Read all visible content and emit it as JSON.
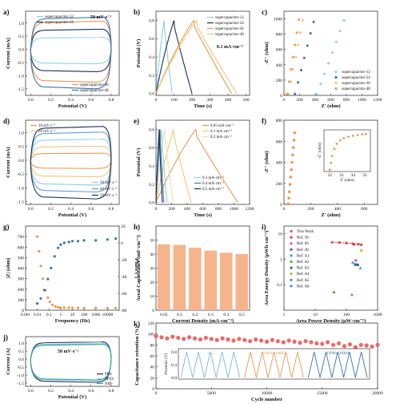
{
  "chart_data": [
    {
      "id": "a",
      "panel_label": "a)",
      "type": "line",
      "xlabel": "Potential (V)",
      "ylabel": "Current (mA)",
      "xlim": [
        -0.05,
        0.88
      ],
      "ylim": [
        -1.75,
        1.45
      ],
      "xticks": [
        "0.0",
        "0.2",
        "0.4",
        "0.6",
        "0.8"
      ],
      "yticks": [
        "-1.5",
        "-1.0",
        "-0.5",
        "0.0",
        "0.5",
        "1.0"
      ],
      "annotation": "50 mV·s⁻¹",
      "series": [
        {
          "name": "supercapacitor-12",
          "color": "#8ecfe0",
          "upper": 0.45,
          "lower": -0.55
        },
        {
          "name": "supercapacitor-24",
          "color": "#1d2f57",
          "upper": 0.75,
          "lower": -0.85
        },
        {
          "name": "supercapacitor-36",
          "color": "#e89a55",
          "upper": 1.05,
          "lower": -1.25
        },
        {
          "name": "supercapacitor-48",
          "color": "#3c74a8",
          "upper": 1.2,
          "lower": -1.5
        }
      ]
    },
    {
      "id": "b",
      "panel_label": "b)",
      "type": "line",
      "xlabel": "Time (s)",
      "ylabel": "Potential (V)",
      "xlim": [
        0,
        520
      ],
      "ylim": [
        -0.02,
        0.9
      ],
      "xticks": [
        "0",
        "100",
        "200",
        "300",
        "400",
        "500"
      ],
      "yticks": [
        "0.0",
        "0.2",
        "0.4",
        "0.6",
        "0.8"
      ],
      "annotation": "0.1 mA·cm⁻²",
      "series": [
        {
          "name": "supercapacitor-12",
          "color": "#8ecfe0",
          "peak_t": 45,
          "end_t": 90
        },
        {
          "name": "supercapacitor-24",
          "color": "#1d2f57",
          "peak_t": 100,
          "end_t": 200
        },
        {
          "name": "supercapacitor-36",
          "color": "#e89a55",
          "peak_t": 210,
          "end_t": 420
        },
        {
          "name": "supercapacitor-48",
          "color": "#f2c879",
          "peak_t": 225,
          "end_t": 450
        }
      ]
    },
    {
      "id": "c",
      "panel_label": "c)",
      "type": "scatter",
      "xlabel": "Z' (ohm)",
      "ylabel": "-Z'' (ohm)",
      "xlim": [
        0,
        1200
      ],
      "ylim": [
        0,
        1100
      ],
      "xticks": [
        "0",
        "200",
        "400",
        "600",
        "800",
        "1000",
        "1200"
      ],
      "yticks": [
        "0",
        "200",
        "400",
        "600",
        "800",
        "1000"
      ],
      "series": [
        {
          "name": "supercapacitor-12",
          "color": "#8ecfe0",
          "x": [
            420,
            470,
            520,
            570,
            620,
            670,
            720,
            770
          ],
          "y": [
            20,
            150,
            280,
            420,
            560,
            700,
            840,
            980
          ]
        },
        {
          "name": "supercapacitor-24",
          "color": "#3c74a8",
          "x": [
            140,
            180,
            220,
            260,
            300,
            340,
            380
          ],
          "y": [
            20,
            170,
            330,
            490,
            650,
            810,
            960
          ]
        },
        {
          "name": "supercapacitor-36",
          "color": "#f2c879",
          "x": [
            60,
            90,
            120,
            150,
            180,
            210,
            240
          ],
          "y": [
            20,
            180,
            340,
            500,
            660,
            820,
            980
          ]
        },
        {
          "name": "supercapacitor-48",
          "color": "#e89a55",
          "x": [
            40,
            65,
            90,
            115,
            140,
            165,
            190
          ],
          "y": [
            20,
            180,
            340,
            500,
            660,
            820,
            990
          ]
        }
      ]
    },
    {
      "id": "d",
      "panel_label": "d)",
      "type": "line",
      "xlabel": "Potential (V)",
      "ylabel": "Current (mA)",
      "xlim": [
        -0.05,
        0.88
      ],
      "ylim": [
        -1.6,
        1.45
      ],
      "xticks": [
        "0.0",
        "0.2",
        "0.4",
        "0.6",
        "0.8"
      ],
      "yticks": [
        "-1.5",
        "-1.0",
        "-0.5",
        "0.0",
        "0.5",
        "1.0"
      ],
      "series": [
        {
          "name": "10 mV·s⁻¹",
          "color": "#e89a55",
          "upper": 0.25,
          "lower": -0.3
        },
        {
          "name": "20 mV·s⁻¹",
          "color": "#f2c879",
          "upper": 0.5,
          "lower": -0.6
        },
        {
          "name": "30 mV·s⁻¹",
          "color": "#8ecfe0",
          "upper": 0.75,
          "lower": -0.9
        },
        {
          "name": "40 mV·s⁻¹",
          "color": "#5f9ec9",
          "upper": 1.0,
          "lower": -1.15
        },
        {
          "name": "50 mV·s⁻¹",
          "color": "#1d2f57",
          "upper": 1.2,
          "lower": -1.4
        }
      ]
    },
    {
      "id": "e",
      "panel_label": "e)",
      "type": "line",
      "xlabel": "Time (s)",
      "ylabel": "Potential (V)",
      "xlim": [
        0,
        1200
      ],
      "ylim": [
        -0.02,
        0.9
      ],
      "xticks": [
        "0",
        "200",
        "400",
        "600",
        "800",
        "1000",
        "1200"
      ],
      "yticks": [
        "0.0",
        "0.2",
        "0.4",
        "0.6",
        "0.8"
      ],
      "series": [
        {
          "name": "0.05 mA·cm⁻²",
          "color": "#e89a55",
          "peak_t": 510,
          "end_t": 1050
        },
        {
          "name": "0.1 mA·cm⁻²",
          "color": "#f2c879",
          "peak_t": 225,
          "end_t": 450
        },
        {
          "name": "0.2 mA·cm⁻²",
          "color": "#f5dca3",
          "peak_t": 110,
          "end_t": 220
        },
        {
          "name": "0.3 mA·cm⁻²",
          "color": "#8ecfe0",
          "peak_t": 70,
          "end_t": 140
        },
        {
          "name": "0.4 mA·cm⁻²",
          "color": "#3c74a8",
          "peak_t": 50,
          "end_t": 100
        },
        {
          "name": "0.5 mA·cm⁻²",
          "color": "#1d2f57",
          "peak_t": 40,
          "end_t": 80
        }
      ]
    },
    {
      "id": "f",
      "panel_label": "f)",
      "type": "scatter",
      "xlabel": "Z' (ohm)",
      "ylabel": "-Z'' (ohm)",
      "xlim": [
        0,
        700
      ],
      "ylim": [
        0,
        800
      ],
      "xticks": [
        "0",
        "200",
        "400",
        "600"
      ],
      "yticks": [
        "0",
        "200",
        "400",
        "600",
        "800"
      ],
      "series": [
        {
          "name": "",
          "color": "#e89a55",
          "x": [
            32,
            36,
            40,
            45,
            50,
            55,
            60,
            65,
            70,
            75,
            80
          ],
          "y": [
            5,
            60,
            120,
            190,
            260,
            330,
            400,
            470,
            540,
            610,
            680
          ]
        }
      ],
      "inset": {
        "xlabel": "Z' (ohm)",
        "ylabel": "-Z'' (ohm)",
        "xlim": [
          31.5,
          35.5
        ],
        "ylim": [
          0,
          12
        ],
        "xticks": [
          "32",
          "33",
          "34",
          "35"
        ],
        "x": [
          32.0,
          32.1,
          32.2,
          32.4,
          32.6,
          32.9,
          33.2,
          33.6,
          34.0,
          34.4,
          34.8,
          35.1
        ],
        "y": [
          0.5,
          2.5,
          4.5,
          6.5,
          8.0,
          9.0,
          9.6,
          10.0,
          10.3,
          10.5,
          10.7,
          10.8
        ]
      }
    },
    {
      "id": "g",
      "panel_label": "g)",
      "type": "scatter",
      "xlabel": "Frequency (Hz)",
      "ylabel": "|Z| (ohm)",
      "y2label": "Phase (°)",
      "xscale": "log",
      "xlim": [
        0.001,
        100000
      ],
      "ylim": [
        0,
        800
      ],
      "y2lim": [
        -80,
        20
      ],
      "xticks": [
        "0.001",
        "0.01",
        "0.1",
        "1",
        "10",
        "100",
        "1000",
        "10000"
      ],
      "yticks": [
        "0",
        "100",
        "200",
        "300",
        "400",
        "500",
        "600",
        "700"
      ],
      "y2ticks": [
        "-80",
        "-60",
        "-40",
        "-20",
        "0",
        "20"
      ],
      "series": [
        {
          "name": "|Z|",
          "color": "#e89a55",
          "axis": "left",
          "x": [
            0.01,
            0.014,
            0.02,
            0.03,
            0.05,
            0.08,
            0.12,
            0.2,
            0.35,
            0.6,
            1,
            2,
            5,
            10,
            30,
            100,
            1000,
            10000,
            50000
          ],
          "y": [
            700,
            560,
            420,
            300,
            190,
            120,
            80,
            50,
            35,
            28,
            25,
            24,
            23,
            22,
            22,
            21,
            21,
            20,
            20
          ]
        },
        {
          "name": "Phase",
          "color": "#3c74a8",
          "axis": "right",
          "x": [
            0.01,
            0.02,
            0.04,
            0.08,
            0.15,
            0.3,
            0.6,
            1,
            2,
            5,
            10,
            30,
            100,
            1000,
            10000,
            50000
          ],
          "y": [
            -72,
            -66,
            -56,
            -43,
            -30,
            -16,
            -6,
            -2,
            0,
            1,
            2,
            2,
            3,
            3,
            4,
            5
          ]
        }
      ]
    },
    {
      "id": "h",
      "panel_label": "h)",
      "type": "bar",
      "xlabel": "Current Density (mA·cm⁻²)",
      "ylabel": "Areal Capacitance (mF·cm⁻²)",
      "categories": [
        "0.05",
        "0.1",
        "0.2",
        "0.3",
        "0.4",
        "0.5"
      ],
      "values": [
        47,
        46.5,
        44.5,
        42.5,
        41,
        40
      ],
      "ylim": [
        0,
        60
      ],
      "yticks": [
        "0",
        "10",
        "20",
        "30",
        "40",
        "50"
      ],
      "color": "#f6b48c"
    },
    {
      "id": "i",
      "panel_label": "i)",
      "type": "scatter",
      "xlabel": "Area Power Density (μW·cm⁻²)",
      "ylabel": "Area Energy Density (μWh·cm⁻²)",
      "xscale": "log",
      "yscale": "log",
      "xlim": [
        1,
        1000
      ],
      "ylim": [
        0.01,
        20
      ],
      "xticks": [
        "1",
        "10",
        "100",
        "1000"
      ],
      "yticks": [
        "0.1",
        "1",
        "10"
      ],
      "series": [
        {
          "name": "This Work",
          "color": "#e05050",
          "marker": "circle",
          "x": [
            35,
            60,
            100,
            160,
            240,
            300
          ],
          "y": [
            4.6,
            4.5,
            4.3,
            4.1,
            3.9,
            3.7
          ]
        },
        {
          "name": "Ref. 56",
          "color": "#d04070",
          "marker": "circle",
          "x": [
            175
          ],
          "y": [
            3.8
          ]
        },
        {
          "name": "Ref. 60",
          "color": "#c060c0",
          "marker": "circle",
          "x": [
            200
          ],
          "y": [
            0.9
          ]
        },
        {
          "name": "Ref. 40",
          "color": "#4060c0",
          "marker": "square",
          "x": [
            190
          ],
          "y": [
            0.62
          ]
        },
        {
          "name": "Ref. A1",
          "color": "#40a0a0",
          "marker": "triangle",
          "x": [
            280
          ],
          "y": [
            0.45
          ]
        },
        {
          "name": "Ref. A2",
          "color": "#50b050",
          "marker": "circle",
          "x": [
            40
          ],
          "y": [
            0.05
          ]
        },
        {
          "name": "Ref. A3",
          "color": "#3060a0",
          "marker": "square",
          "x": [
            230
          ],
          "y": [
            0.6
          ]
        },
        {
          "name": "Ref. A4",
          "color": "#e0a030",
          "marker": "diamond",
          "x": [
            300
          ],
          "y": [
            2.2
          ]
        },
        {
          "name": "Ref. A5",
          "color": "#6080d0",
          "marker": "triangle",
          "x": [
            160
          ],
          "y": [
            0.75
          ]
        },
        {
          "name": "Ref. A6",
          "color": "#30a0c0",
          "marker": "star",
          "x": [
            150
          ],
          "y": [
            0.04
          ]
        }
      ]
    },
    {
      "id": "j",
      "panel_label": "j)",
      "type": "line",
      "xlabel": "Potential (V)",
      "ylabel": "Current (A)",
      "xlim": [
        -0.05,
        0.88
      ],
      "ylim": [
        -1.7,
        1.4
      ],
      "xticks": [
        "0.0",
        "0.2",
        "0.4",
        "0.6",
        "0.8"
      ],
      "yticks": [
        "-1.5",
        "-1.0",
        "-0.5",
        "0.0",
        "0.5",
        "1.0"
      ],
      "annotation": "50 mV·s⁻¹",
      "series": [
        {
          "name": "PBS",
          "color": "#1d2f57",
          "upper": 1.05,
          "lower": -1.45
        },
        {
          "name": "SPSS",
          "color": "#8ecfe0",
          "upper": 0.95,
          "lower": -1.35
        },
        {
          "name": "NBF",
          "color": "#2aa198",
          "upper": 0.9,
          "lower": -1.3
        }
      ]
    },
    {
      "id": "k",
      "panel_label": "k)",
      "type": "scatter",
      "xlabel": "Cycle number",
      "ylabel": "Capacitance retention (%)",
      "xlim": [
        0,
        20000
      ],
      "ylim": [
        0,
        120
      ],
      "xticks": [
        "0",
        "5000",
        "10000",
        "15000",
        "20000"
      ],
      "yticks": [
        "0",
        "20",
        "40",
        "60",
        "80",
        "100",
        "120"
      ],
      "series": [
        {
          "name": "",
          "color": "#e86a6a",
          "x": [
            0,
            500,
            1000,
            1500,
            2000,
            2500,
            3000,
            3500,
            4000,
            4500,
            5000,
            5500,
            6000,
            6500,
            7000,
            7500,
            8000,
            8500,
            9000,
            9500,
            10000,
            10500,
            11000,
            11500,
            12000,
            12500,
            13000,
            13500,
            14000,
            14500,
            15000,
            15500,
            16000,
            16500,
            17000,
            17500,
            18000,
            18500,
            19000,
            19500,
            20000
          ],
          "y": [
            96,
            94,
            92,
            95,
            93,
            91,
            94,
            92,
            90,
            93,
            91,
            89,
            92,
            90,
            88,
            91,
            89,
            87,
            90,
            88,
            86,
            89,
            87,
            85,
            88,
            86,
            84,
            87,
            85,
            83,
            82,
            85,
            80,
            83,
            78,
            81,
            76,
            80,
            79,
            77,
            80
          ]
        }
      ],
      "inset": {
        "ylabel": "Potential (V)",
        "ylim": [
          0,
          0.8
        ],
        "yticks": [
          "0.0",
          "0.4",
          "0.8"
        ],
        "segments": [
          {
            "label": "1~5",
            "color": "#7ab8d6",
            "cycles": 5
          },
          {
            "label": "10001~10005",
            "color": "#e89a55",
            "cycles": 5
          },
          {
            "label": "19996~20000",
            "color": "#3c74a8",
            "cycles": 5
          }
        ]
      }
    }
  ]
}
